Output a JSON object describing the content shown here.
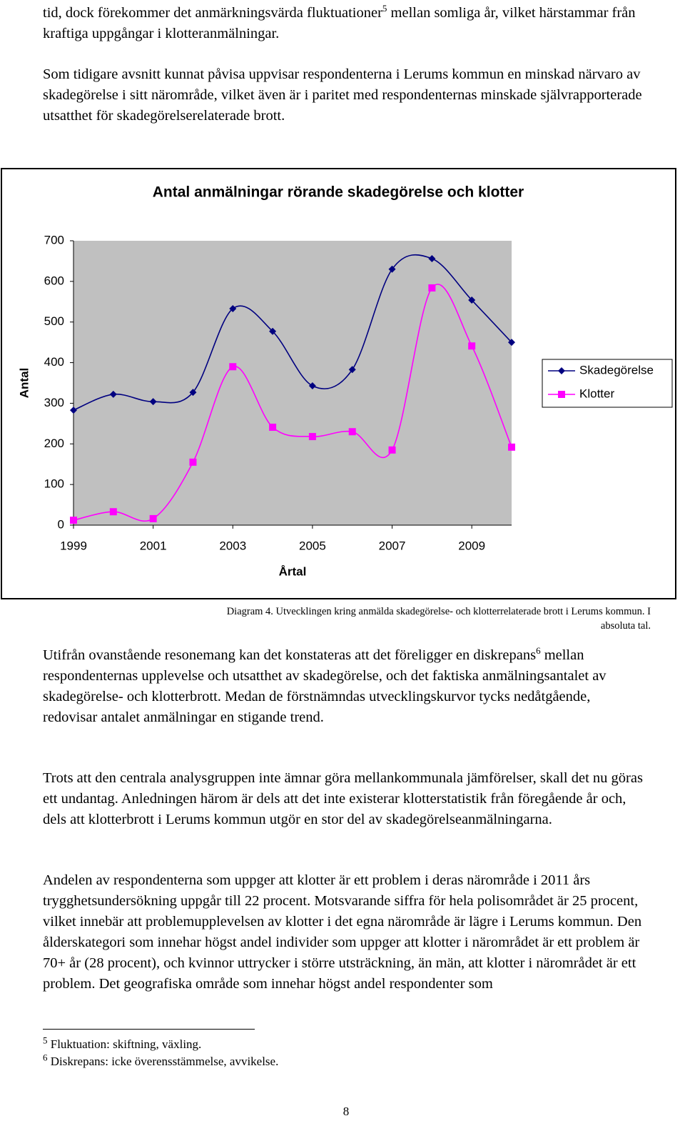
{
  "document": {
    "paragraphs": [
      {
        "before": "tid, dock förekommer det anmärkningsvärda fluktuationer",
        "footnote_ref": "5",
        "after": " mellan somliga år, vilket härstammar från kraftiga uppgångar i klotteranmälningar."
      },
      {
        "text": "Som tidigare avsnitt kunnat påvisa uppvisar respondenterna i Lerums kommun en minskad närvaro av skadegörelse i sitt närområde, vilket även är i paritet med respondenternas minskade självrapporterade utsatthet för skadegörelserelaterade brott."
      },
      {
        "before": "Utifrån ovanstående resonemang kan det konstateras att det föreligger en diskrepans",
        "footnote_ref": "6",
        "after": " mellan respondenternas upplevelse och utsatthet av skadegörelse, och det faktiska anmälningsantalet av skadegörelse- och klotterbrott. Medan de förstnämndas utvecklingskurvor tycks nedåtgående, redovisar antalet anmälningar en stigande trend."
      },
      {
        "text": "Trots att den centrala analysgruppen inte ämnar göra mellankommunala jämförelser, skall det nu göras ett undantag. Anledningen härom är dels att det inte existerar klotterstatistik från föregående år och, dels att klotterbrott i Lerums kommun utgör en stor del av skadegörelseanmälningarna."
      },
      {
        "text": "Andelen av respondenterna som uppger att klotter är ett problem i deras närområde i 2011 års trygghetsundersökning uppgår till 22 procent. Motsvarande siffra för hela polisområdet är 25 procent, vilket innebär att problemupplevelsen av klotter i det egna närområde är lägre i Lerums kommun. Den ålderskategori som innehar högst andel individer som uppger att klotter i närområdet är ett problem är 70+ år (28 procent), och kvinnor uttrycker i större utsträckning, än män, att klotter i närområdet är ett problem. Det geografiska område som innehar högst andel respondenter som"
      }
    ],
    "caption": "Diagram 4. Utvecklingen kring anmälda skadegörelse- och klotterrelaterade brott i Lerums kommun. I absoluta tal.",
    "footnotes": [
      {
        "number": "5",
        "text": "Fluktuation: skiftning, växling."
      },
      {
        "number": "6",
        "text": "Diskrepans: icke överensstämmelse, avvikelse."
      }
    ],
    "page_number": "8"
  },
  "chart_data": {
    "type": "line",
    "title": "Antal anmälningar rörande skadegörelse och klotter",
    "xlabel": "Årtal",
    "ylabel": "Antal",
    "x": [
      1999,
      2000,
      2001,
      2002,
      2003,
      2004,
      2005,
      2006,
      2007,
      2008,
      2009,
      2010
    ],
    "xlim": [
      1999,
      2010
    ],
    "xticks": [
      1999,
      2001,
      2003,
      2005,
      2007,
      2009
    ],
    "ylim": [
      0,
      700
    ],
    "yticks": [
      0,
      100,
      200,
      300,
      400,
      500,
      600,
      700
    ],
    "smooth": true,
    "legend": "right",
    "series": [
      {
        "name": "Skadegörelse",
        "color": "#000080",
        "marker": "diamond",
        "values": [
          283,
          322,
          304,
          327,
          533,
          477,
          343,
          383,
          630,
          656,
          554,
          450
        ]
      },
      {
        "name": "Klotter",
        "color": "#ff00ff",
        "marker": "square",
        "values": [
          12,
          33,
          16,
          155,
          390,
          241,
          218,
          230,
          185,
          584,
          441,
          192
        ]
      }
    ]
  }
}
